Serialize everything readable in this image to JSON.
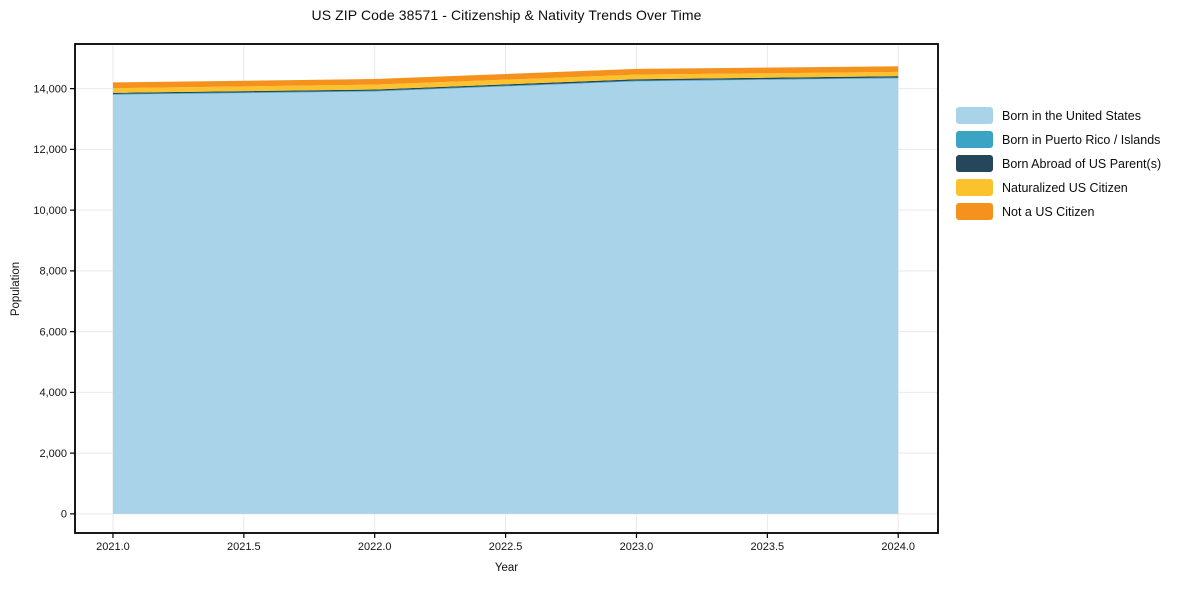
{
  "chart": {
    "title": "US ZIP Code 38571 - Citizenship & Nativity Trends Over Time",
    "xlabel": "Year",
    "ylabel": "Population"
  },
  "chart_data": {
    "type": "area",
    "stacked": true,
    "title": "US ZIP Code 38571 - Citizenship & Nativity Trends Over Time",
    "xlabel": "Year",
    "ylabel": "Population",
    "x": [
      2021,
      2022,
      2023,
      2024
    ],
    "series": [
      {
        "name": "Born in the United States",
        "color": "#A8D3E8",
        "values": [
          13800,
          13905,
          14240,
          14340
        ]
      },
      {
        "name": "Born in Puerto Rico / Islands",
        "color": "#3BA3C4",
        "values": [
          25,
          25,
          26,
          26
        ]
      },
      {
        "name": "Born Abroad of US Parent(s)",
        "color": "#24475C",
        "values": [
          40,
          41,
          45,
          46
        ]
      },
      {
        "name": "Naturalized US Citizen",
        "color": "#FCC22D",
        "values": [
          150,
          160,
          150,
          140
        ]
      },
      {
        "name": "Not a US Citizen",
        "color": "#F5921E",
        "values": [
          190,
          185,
          190,
          185
        ]
      }
    ],
    "totals": [
      14205,
      14316,
      14651,
      14737
    ],
    "xticks": {
      "values": [
        2021.0,
        2021.5,
        2022.0,
        2022.5,
        2023.0,
        2023.5,
        2024.0
      ],
      "labels": [
        "2021.0",
        "2021.5",
        "2022.0",
        "2022.5",
        "2023.0",
        "2023.5",
        "2024.0"
      ]
    },
    "yticks": {
      "values": [
        0,
        2000,
        4000,
        6000,
        8000,
        10000,
        12000,
        14000
      ],
      "labels": [
        "0",
        "2,000",
        "4,000",
        "6,000",
        "8,000",
        "10,000",
        "12,000",
        "14,000"
      ]
    },
    "xlim": [
      2020.855,
      2024.152
    ],
    "ylim": [
      -630,
      15470
    ],
    "grid": true,
    "legend_position": "right-outside"
  },
  "colors": {
    "background": "#ffffff",
    "frame": "#000000",
    "grid": "#e9e9e9",
    "tick": "#000000",
    "text": "#111111"
  }
}
